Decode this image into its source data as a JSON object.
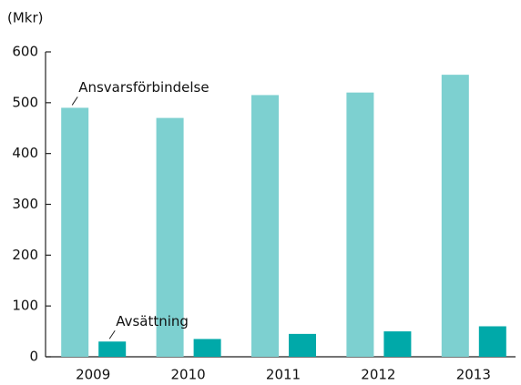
{
  "chart_data": {
    "type": "bar",
    "y_label": "(Mkr)",
    "categories": [
      "2009",
      "2010",
      "2011",
      "2012",
      "2013"
    ],
    "series": [
      {
        "name": "Ansvarsförbindelse",
        "color": "#7dd0d0",
        "values": [
          490,
          470,
          515,
          520,
          555
        ]
      },
      {
        "name": "Avsättning",
        "color": "#00a9a9",
        "values": [
          30,
          35,
          45,
          50,
          60
        ]
      }
    ],
    "ylim": [
      0,
      600
    ],
    "yticks": [
      0,
      100,
      200,
      300,
      400,
      500,
      600
    ],
    "grid": false
  }
}
